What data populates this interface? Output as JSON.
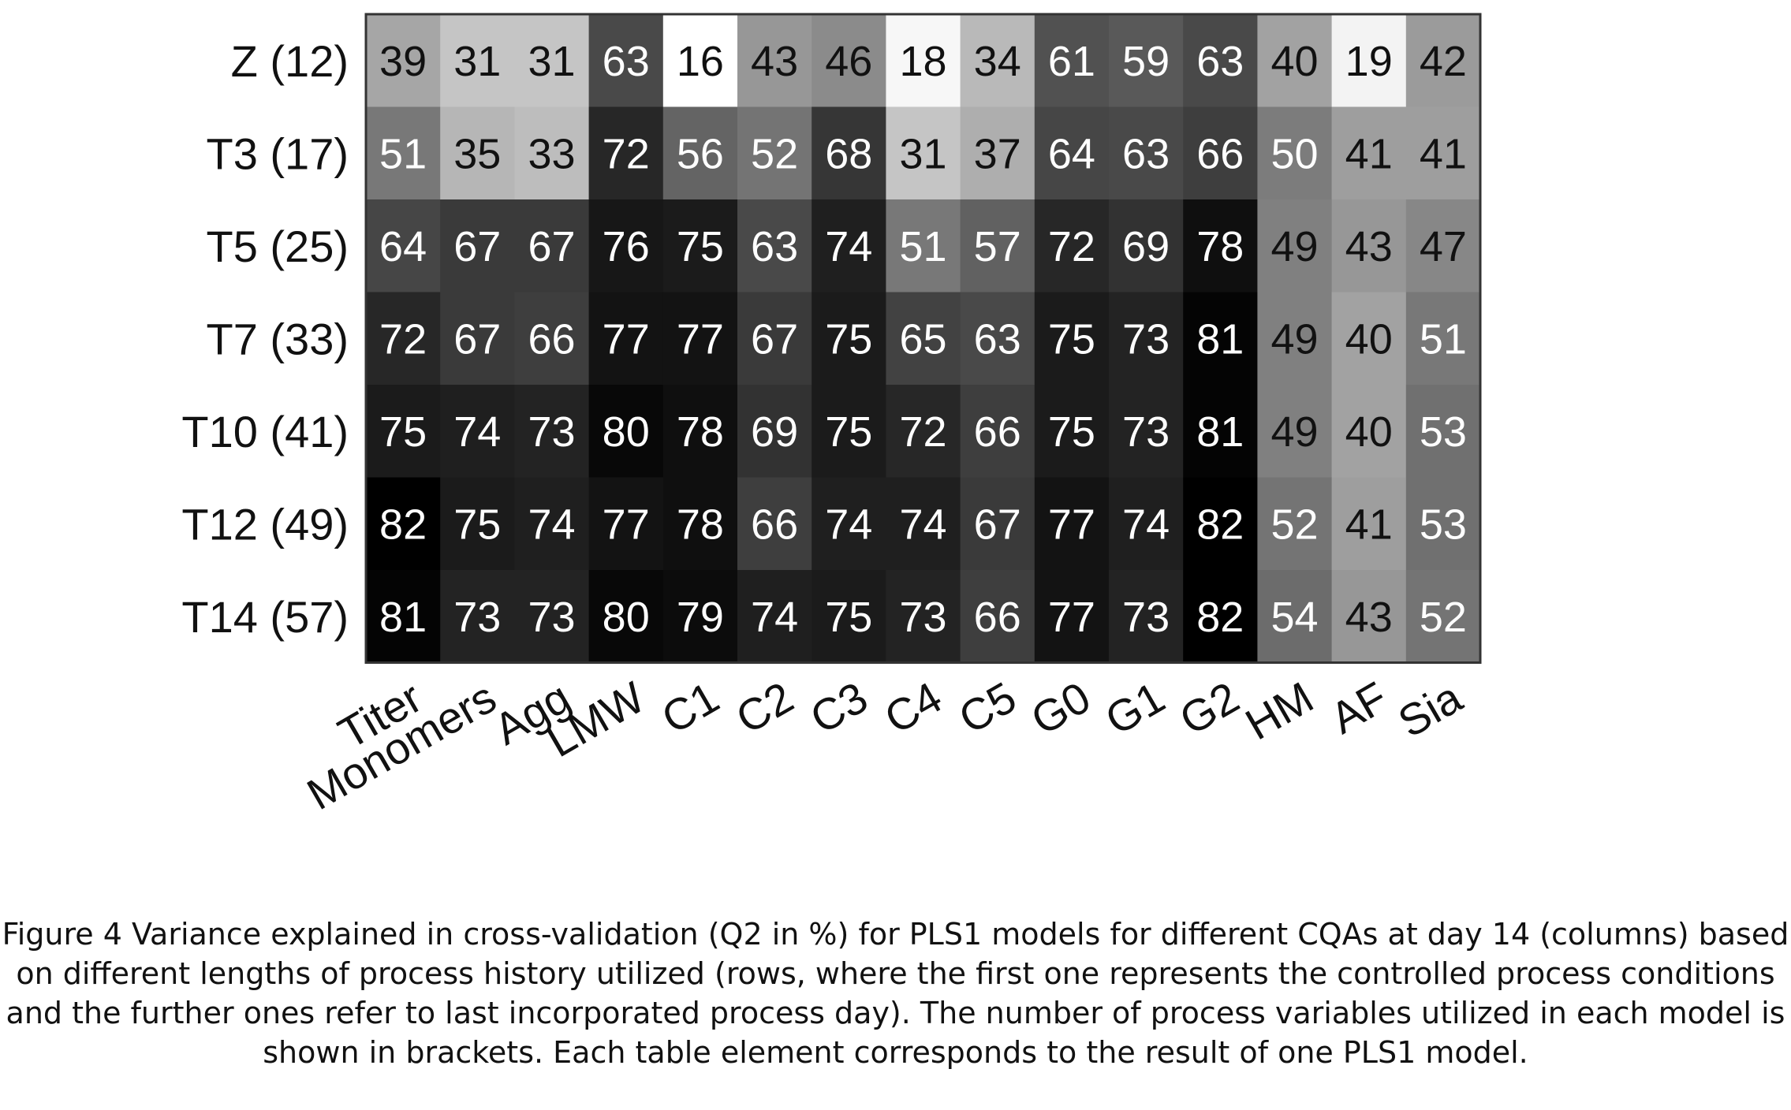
{
  "chart_data": {
    "type": "heatmap",
    "title": "",
    "xlabel": "",
    "ylabel": "",
    "value_range": [
      16,
      82
    ],
    "colormap": "gray-reversed",
    "rows": [
      "Z (12)",
      "T3 (17)",
      "T5 (25)",
      "T7 (33)",
      "T10 (41)",
      "T12 (49)",
      "T14 (57)"
    ],
    "columns": [
      "Titer",
      "Monomers",
      "Agg",
      "LMW",
      "C1",
      "C2",
      "C3",
      "C4",
      "C5",
      "G0",
      "G1",
      "G2",
      "HM",
      "AF",
      "Sia"
    ],
    "values": [
      [
        39,
        31,
        31,
        63,
        16,
        43,
        46,
        18,
        34,
        61,
        59,
        63,
        40,
        19,
        42
      ],
      [
        51,
        35,
        33,
        72,
        56,
        52,
        68,
        31,
        37,
        64,
        63,
        66,
        50,
        41,
        41
      ],
      [
        64,
        67,
        67,
        76,
        75,
        63,
        74,
        51,
        57,
        72,
        69,
        78,
        49,
        43,
        47
      ],
      [
        72,
        67,
        66,
        77,
        77,
        67,
        75,
        65,
        63,
        75,
        73,
        81,
        49,
        40,
        51
      ],
      [
        75,
        74,
        73,
        80,
        78,
        69,
        75,
        72,
        66,
        75,
        73,
        81,
        49,
        40,
        53
      ],
      [
        82,
        75,
        74,
        77,
        78,
        66,
        74,
        74,
        67,
        77,
        74,
        82,
        52,
        41,
        53
      ],
      [
        81,
        73,
        73,
        80,
        79,
        74,
        75,
        73,
        66,
        77,
        73,
        82,
        54,
        43,
        52
      ]
    ]
  },
  "caption": "Figure 4 Variance explained in cross-validation (Q2 in %) for PLS1 models for different CQAs at day 14 (columns) based on different lengths of process history utilized (rows, where the first one represents the controlled process conditions and the further ones refer to last incorporated process day). The number of process variables utilized in each model is shown in brackets. Each table element corresponds to the result of one PLS1 model."
}
